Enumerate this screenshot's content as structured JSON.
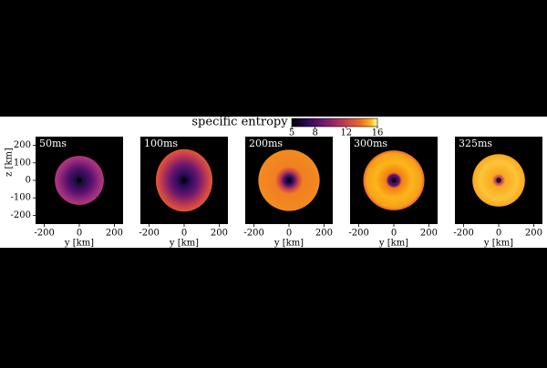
{
  "chart_data": {
    "type": "image-grid",
    "colorbar": {
      "label": "specific entropy",
      "lim": [
        5,
        16
      ],
      "ticks": [
        5,
        8,
        12,
        16
      ]
    },
    "xlabel": "y [km]",
    "ylabel": "z [km]",
    "xlim": [
      -250,
      250
    ],
    "ylim": [
      -250,
      250
    ],
    "xticks": [
      -200,
      0,
      200
    ],
    "yticks": [
      200,
      100,
      0,
      -100,
      -200
    ],
    "panels": [
      {
        "label": "50ms"
      },
      {
        "label": "100ms"
      },
      {
        "label": "200ms"
      },
      {
        "label": "300ms"
      },
      {
        "label": "325ms"
      }
    ]
  }
}
